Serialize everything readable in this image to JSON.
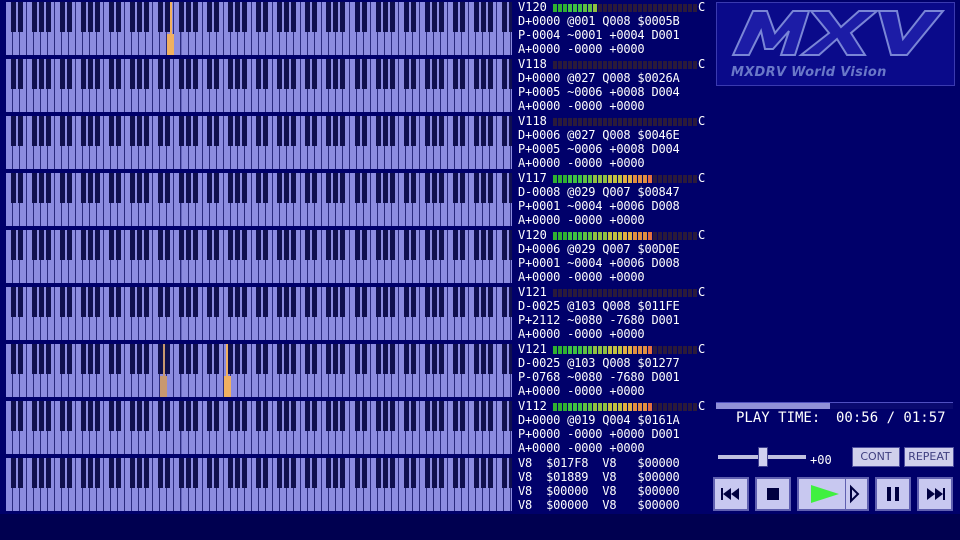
{
  "tracks": [
    {
      "v": "V120",
      "c": "C",
      "d": "D+0000 @001 Q008 $0005B",
      "p": "P-0004 ~0001 +0004 D001",
      "a": "A+0000 -0000 +0000",
      "level": 9,
      "notes": [
        {
          "key": 23,
          "color": "#f0b060"
        }
      ]
    },
    {
      "v": "V118",
      "c": "C",
      "d": "D+0000 @027 Q008 $0026A",
      "p": "P+0005 ~0006 +0008 D004",
      "a": "A+0000 -0000 +0000",
      "level": 0,
      "notes": []
    },
    {
      "v": "V118",
      "c": "C",
      "d": "D+0006 @027 Q008 $0046E",
      "p": "P+0005 ~0006 +0008 D004",
      "a": "A+0000 -0000 +0000",
      "level": 0,
      "notes": []
    },
    {
      "v": "V117",
      "c": "C",
      "d": "D-0008 @029 Q007 $00847",
      "p": "P+0001 ~0004 +0006 D008",
      "a": "A+0000 -0000 +0000",
      "level": 20,
      "notes": []
    },
    {
      "v": "V120",
      "c": "C",
      "d": "D+0006 @029 Q007 $00D0E",
      "p": "P+0001 ~0004 +0006 D008",
      "a": "A+0000 -0000 +0000",
      "level": 20,
      "notes": []
    },
    {
      "v": "V121",
      "c": "C",
      "d": "D-0025 @103 Q008 $011FE",
      "p": "P+2112 ~0080 -7680 D001",
      "a": "A+0000 -0000 +0000",
      "level": 0,
      "notes": []
    },
    {
      "v": "V121",
      "c": "C",
      "d": "D-0025 @103 Q008 $01277",
      "p": "P-0768 ~0080 -7680 D001",
      "a": "A+0000 -0000 +0000",
      "level": 20,
      "notes": [
        {
          "key": 22,
          "color": "#c89870"
        },
        {
          "key": 31,
          "color": "#f0b060"
        }
      ]
    },
    {
      "v": "V112",
      "c": "C",
      "d": "D+0000 @019 Q004 $0161A",
      "p": "P+0000 -0000 +0000 D001",
      "a": "A+0000 -0000 +0000",
      "level": 20,
      "notes": []
    }
  ],
  "pcm": {
    "rows": [
      "V8  $017F8  V8   $00000",
      "V8  $01889  V8   $00000",
      "V8  $00000  V8   $00000",
      "V8  $00000  V8   $00000"
    ]
  },
  "logo": {
    "letters": "MXV",
    "subtitle": "MXDRV World Vision"
  },
  "playback": {
    "label": "PLAY TIME:",
    "time": "00:56 / 01:57",
    "progress": 0.48,
    "transpose": "+00",
    "slider_level": 0.5
  },
  "buttons": {
    "cont": "CONT",
    "repeat": "REPEAT"
  },
  "icons": {
    "rewind": "rewind-icon",
    "stop": "stop-icon",
    "play": "play-icon",
    "pause": "pause-icon",
    "fastforward": "fast-forward-icon"
  },
  "colors": {
    "background": "#00006a",
    "keyboard": "#8c8ce0",
    "play_green": "#40f040"
  }
}
